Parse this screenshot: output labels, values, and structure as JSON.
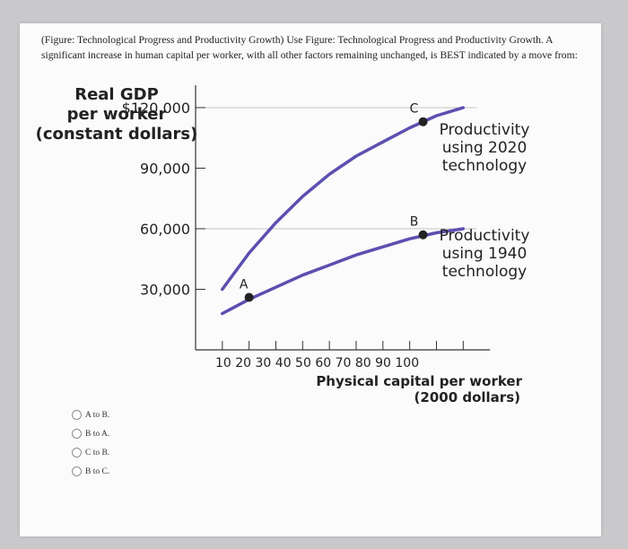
{
  "question": {
    "text": "(Figure: Technological Progress and Productivity Growth) Use Figure: Technological Progress and Productivity Growth. A significant increase in human capital per worker, with all other factors remaining unchanged, is BEST indicated by a move from:"
  },
  "chart_data": {
    "type": "line",
    "ylabel_lines": [
      "Real GDP",
      "per worker",
      "(constant dollars)"
    ],
    "xlabel_lines": [
      "Physical capital per worker",
      "(2000 dollars)"
    ],
    "y_ticks": [
      {
        "value": 30000,
        "label": "30,000"
      },
      {
        "value": 60000,
        "label": "60,000"
      },
      {
        "value": 90000,
        "label": "90,000"
      },
      {
        "value": 120000,
        "label": "$120,000"
      }
    ],
    "x_ticks": [
      10,
      20,
      30,
      40,
      50,
      60,
      70,
      80,
      90,
      100
    ],
    "x_tick_label": "10 20 30 40 50 60 70 80 90 100",
    "xlim": [
      0,
      105
    ],
    "ylim": [
      0,
      135000
    ],
    "line_color": "#5b4fb0",
    "series": [
      {
        "name": "Productivity using 2020 technology",
        "label_lines": [
          "Productivity",
          "using 2020",
          "technology"
        ],
        "x": [
          10,
          20,
          30,
          40,
          50,
          60,
          70,
          80,
          90,
          100
        ],
        "y": [
          30000,
          48000,
          63000,
          76000,
          87000,
          96000,
          103000,
          110000,
          116000,
          120000
        ]
      },
      {
        "name": "Productivity using 1940 technology",
        "label_lines": [
          "Productivity",
          "using 1940",
          "technology"
        ],
        "x": [
          10,
          20,
          30,
          40,
          50,
          60,
          70,
          80,
          90,
          100
        ],
        "y": [
          18000,
          25000,
          31000,
          37000,
          42000,
          47000,
          51000,
          55000,
          58000,
          60000
        ]
      }
    ],
    "points": [
      {
        "label": "A",
        "x": 20,
        "y": 26000
      },
      {
        "label": "B",
        "x": 85,
        "y": 57000
      },
      {
        "label": "C",
        "x": 85,
        "y": 113000
      }
    ],
    "gridlines": [
      60000,
      120000
    ]
  },
  "answers": [
    {
      "label": "A to B."
    },
    {
      "label": "B to A."
    },
    {
      "label": "C to B."
    },
    {
      "label": "B to C."
    }
  ]
}
